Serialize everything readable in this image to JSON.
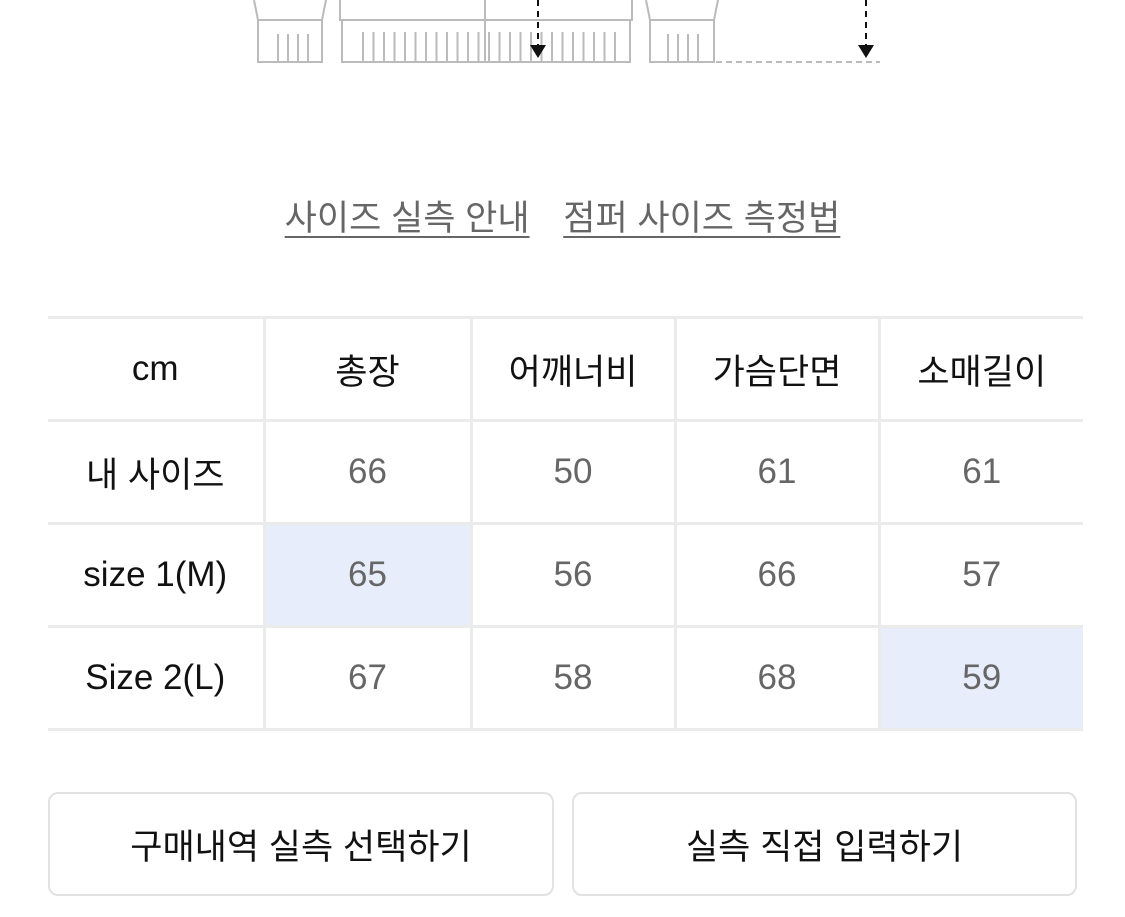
{
  "links": [
    "사이즈 실측 안내",
    "점퍼 사이즈 측정법"
  ],
  "table": {
    "headers": [
      "cm",
      "총장",
      "어깨너비",
      "가슴단면",
      "소매길이"
    ],
    "rows": [
      {
        "label": "내 사이즈",
        "values": [
          "66",
          "50",
          "61",
          "61"
        ]
      },
      {
        "label": "size 1(M)",
        "values": [
          "65",
          "56",
          "66",
          "57"
        ]
      },
      {
        "label": "Size 2(L)",
        "values": [
          "67",
          "58",
          "68",
          "59"
        ]
      }
    ],
    "highlight_color": "#e8edfc"
  },
  "buttons": {
    "purchase_history": "구매내역 실측 선택하기",
    "direct_input": "실측 직접 입력하기"
  }
}
